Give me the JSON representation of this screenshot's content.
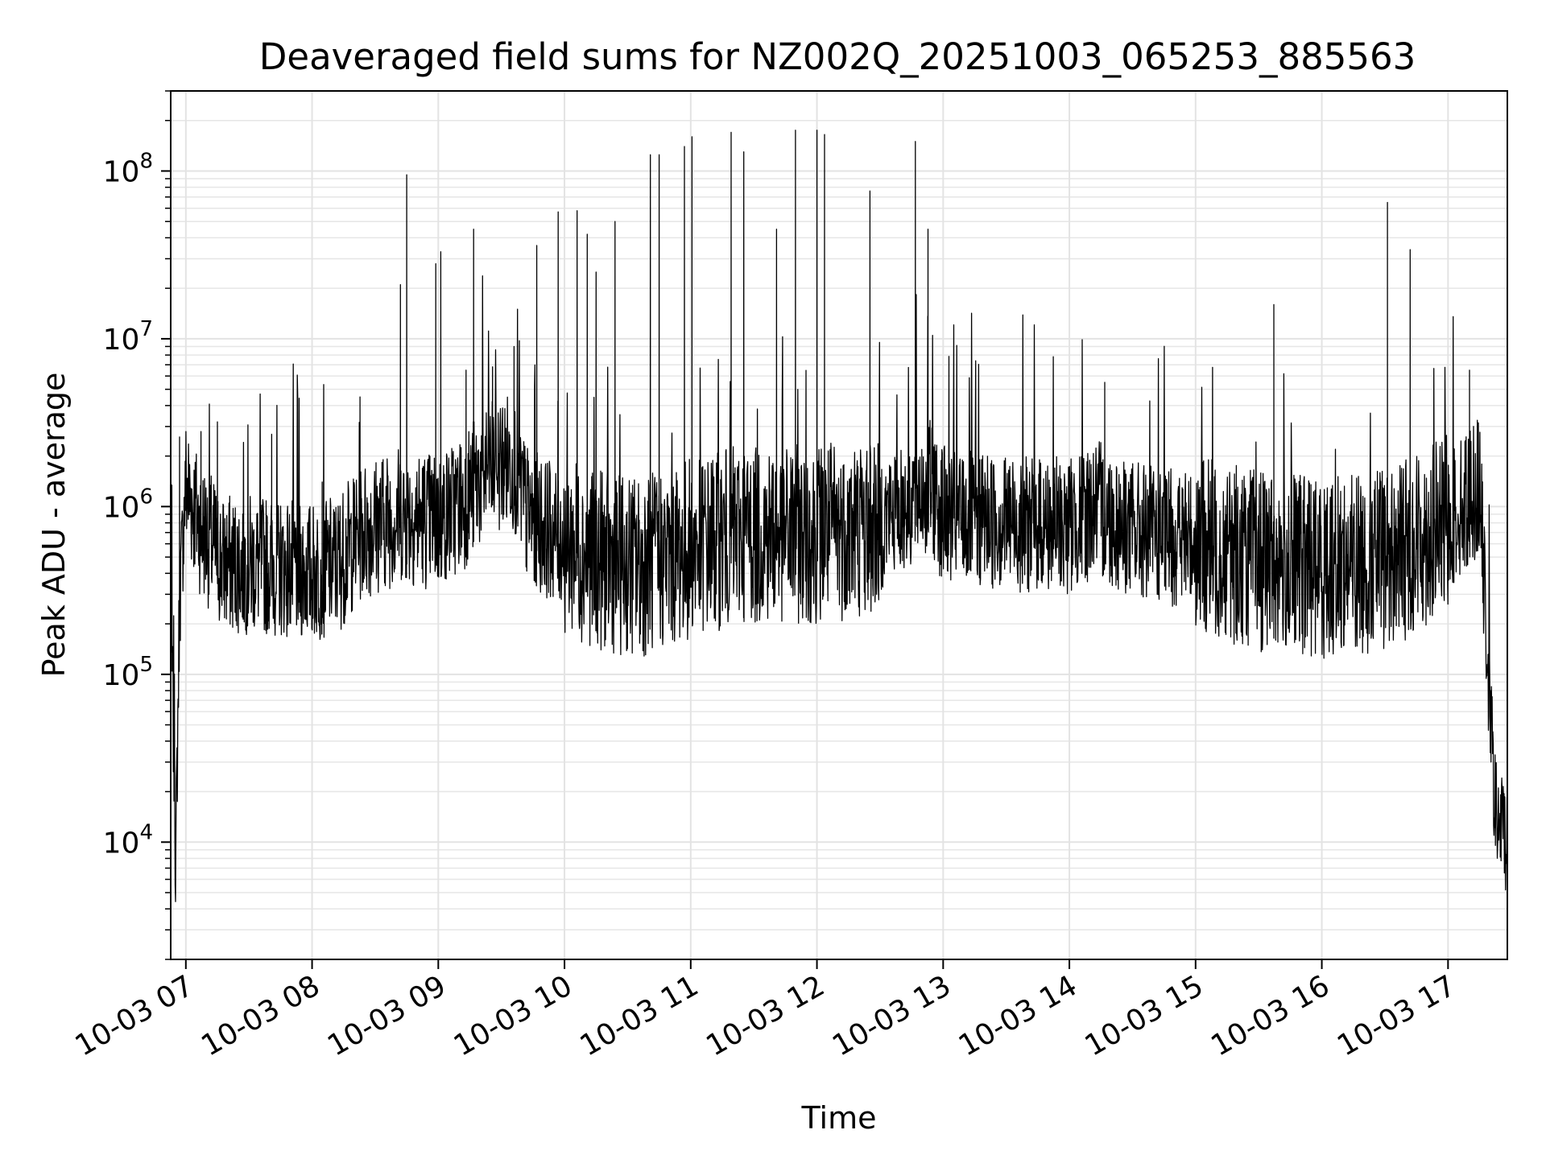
{
  "chart_data": {
    "type": "line",
    "title": "Deaveraged field sums for NZ002Q_20251003_065253_885563",
    "xlabel": "Time",
    "ylabel": "Peak ADU - average",
    "yscale": "log",
    "ylim": [
      2000,
      300000000
    ],
    "xlim_hours": [
      6.88,
      17.47
    ],
    "grid": true,
    "x_ticks": [
      {
        "hour": 7,
        "label": "10-03 07"
      },
      {
        "hour": 8,
        "label": "10-03 08"
      },
      {
        "hour": 9,
        "label": "10-03 09"
      },
      {
        "hour": 10,
        "label": "10-03 10"
      },
      {
        "hour": 11,
        "label": "10-03 11"
      },
      {
        "hour": 12,
        "label": "10-03 12"
      },
      {
        "hour": 13,
        "label": "10-03 13"
      },
      {
        "hour": 14,
        "label": "10-03 14"
      },
      {
        "hour": 15,
        "label": "10-03 15"
      },
      {
        "hour": 16,
        "label": "10-03 16"
      },
      {
        "hour": 17,
        "label": "10-03 17"
      }
    ],
    "y_ticks": [
      {
        "value": 10000,
        "base": "10",
        "exp": "4"
      },
      {
        "value": 100000,
        "base": "10",
        "exp": "5"
      },
      {
        "value": 1000000,
        "base": "10",
        "exp": "6"
      },
      {
        "value": 10000000,
        "base": "10",
        "exp": "7"
      },
      {
        "value": 100000000,
        "base": "10",
        "exp": "8"
      }
    ],
    "series": [
      {
        "name": "deaveraged field sums",
        "color": "#000000",
        "baseline": [
          [
            6.88,
            250000
          ],
          [
            6.9,
            60000
          ],
          [
            6.92,
            8000
          ],
          [
            6.95,
            300000
          ],
          [
            7.0,
            1500000
          ],
          [
            7.1,
            900000
          ],
          [
            7.3,
            500000
          ],
          [
            7.6,
            500000
          ],
          [
            8.0,
            450000
          ],
          [
            8.2,
            500000
          ],
          [
            8.4,
            800000
          ],
          [
            8.7,
            1000000
          ],
          [
            9.0,
            900000
          ],
          [
            9.2,
            1200000
          ],
          [
            9.4,
            1900000
          ],
          [
            9.6,
            2100000
          ],
          [
            9.7,
            1000000
          ],
          [
            10.0,
            700000
          ],
          [
            10.3,
            550000
          ],
          [
            10.6,
            500000
          ],
          [
            11.0,
            650000
          ],
          [
            11.4,
            800000
          ],
          [
            12.0,
            800000
          ],
          [
            12.5,
            900000
          ],
          [
            12.9,
            1500000
          ],
          [
            13.0,
            1000000
          ],
          [
            13.5,
            900000
          ],
          [
            14.0,
            850000
          ],
          [
            14.2,
            1100000
          ],
          [
            14.5,
            800000
          ],
          [
            15.0,
            700000
          ],
          [
            15.5,
            550000
          ],
          [
            16.0,
            500000
          ],
          [
            16.5,
            550000
          ],
          [
            17.0,
            900000
          ],
          [
            17.25,
            1500000
          ],
          [
            17.32,
            100000
          ],
          [
            17.38,
            15000
          ],
          [
            17.47,
            12000
          ]
        ],
        "spikes": [
          [
            6.95,
            2600000
          ],
          [
            7.12,
            2800000
          ],
          [
            7.25,
            3200000
          ],
          [
            7.68,
            2700000
          ],
          [
            8.08,
            1400000
          ],
          [
            8.38,
            4500000
          ],
          [
            8.7,
            21000000
          ],
          [
            8.75,
            95000000
          ],
          [
            8.98,
            28000000
          ],
          [
            9.02,
            33000000
          ],
          [
            9.22,
            6500000
          ],
          [
            9.28,
            45000000
          ],
          [
            9.43,
            6800000
          ],
          [
            9.6,
            9000000
          ],
          [
            9.78,
            36000000
          ],
          [
            9.95,
            57000000
          ],
          [
            10.1,
            58000000
          ],
          [
            10.18,
            42000000
          ],
          [
            10.25,
            25000000
          ],
          [
            10.4,
            50000000
          ],
          [
            10.68,
            125000000
          ],
          [
            10.75,
            125000000
          ],
          [
            10.95,
            140000000
          ],
          [
            11.01,
            160000000
          ],
          [
            11.32,
            170000000
          ],
          [
            11.42,
            130000000
          ],
          [
            11.68,
            45000000
          ],
          [
            11.83,
            175000000
          ],
          [
            12.0,
            175000000
          ],
          [
            12.06,
            165000000
          ],
          [
            12.42,
            76000000
          ],
          [
            12.78,
            150000000
          ],
          [
            12.88,
            45000000
          ],
          [
            14.28,
            5500000
          ],
          [
            15.62,
            16000000
          ],
          [
            16.52,
            65000000
          ],
          [
            16.7,
            34000000
          ],
          [
            17.17,
            6500000
          ]
        ]
      }
    ]
  }
}
